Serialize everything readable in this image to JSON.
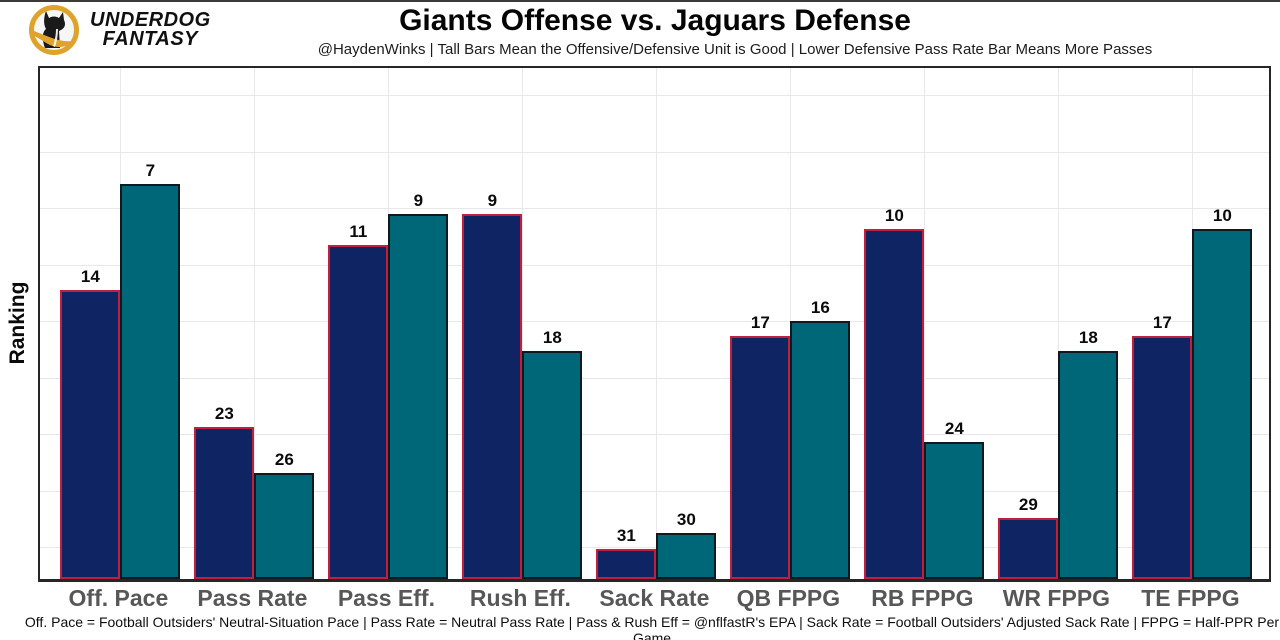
{
  "logo": {
    "line1": "UNDERDOG",
    "line2": "FANTASY",
    "gold": "#DFA32B",
    "black": "#1a1a1a"
  },
  "header": {
    "title": "Giants Offense vs. Jaguars Defense",
    "subtitle": "@HaydenWinks | Tall Bars Mean the Offensive/Defensive Unit is Good | Lower Defensive Pass Rate Bar Means More Passes"
  },
  "chart_data": {
    "type": "bar",
    "title": "Giants Offense vs. Jaguars Defense",
    "ylabel": "Ranking",
    "xlabel": "",
    "categories": [
      "Off. Pace",
      "Pass Rate",
      "Pass Eff.",
      "Rush Eff.",
      "Sack Rate",
      "QB FPPG",
      "RB FPPG",
      "WR FPPG",
      "TE FPPG"
    ],
    "series": [
      {
        "name": "Giants Offense",
        "key": "giants-offense",
        "fill": "#0f2563",
        "border": "#c01f3e",
        "values": [
          14,
          23,
          11,
          9,
          31,
          17,
          10,
          29,
          17
        ]
      },
      {
        "name": "Jaguars Defense",
        "key": "jaguars-defense",
        "fill": "#006778",
        "border": "#101820",
        "values": [
          7,
          26,
          9,
          18,
          30,
          16,
          24,
          18,
          10
        ]
      }
    ],
    "value_semantics": "NFL ranking, 1 = best of 32; taller bar = better rank (height = 33 - rank)",
    "rank_scale_max": 33,
    "ylim": [
      0,
      33
    ],
    "grid": true,
    "legend_position": "none",
    "gridline_color": "#e8e8e8"
  },
  "footer": {
    "note": "Off. Pace = Football Outsiders' Neutral-Situation Pace | Pass Rate = Neutral Pass Rate | Pass & Rush Eff = @nflfastR's EPA | Sack Rate = Football Outsiders' Adjusted Sack Rate | FPPG = Half-PPR Per Game"
  }
}
